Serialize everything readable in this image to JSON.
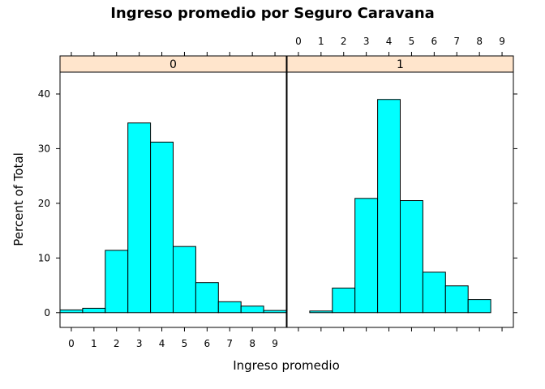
{
  "chart_data": {
    "type": "bar",
    "title": "Ingreso promedio por Seguro Caravana",
    "xlabel": "Ingreso promedio",
    "ylabel": "Percent of Total",
    "x_ticks": [
      "0",
      "1",
      "2",
      "3",
      "4",
      "5",
      "6",
      "7",
      "8",
      "9"
    ],
    "y_ticks": [
      "0",
      "10",
      "20",
      "30",
      "40"
    ],
    "xlim": [
      -0.5,
      9.5
    ],
    "ylim": [
      -2.7,
      44
    ],
    "colors": {
      "bar_fill": "#00ffff",
      "strip_fill": "#ffe5cc",
      "border": "#000000"
    },
    "panels": [
      {
        "strip_label": "0",
        "bins": [
          {
            "x0": -0.5,
            "x1": 0.5,
            "value": 0.5
          },
          {
            "x0": 0.5,
            "x1": 1.5,
            "value": 0.8
          },
          {
            "x0": 1.5,
            "x1": 2.5,
            "value": 11.4
          },
          {
            "x0": 2.5,
            "x1": 3.5,
            "value": 34.7
          },
          {
            "x0": 3.5,
            "x1": 4.5,
            "value": 31.2
          },
          {
            "x0": 4.5,
            "x1": 5.5,
            "value": 12.1
          },
          {
            "x0": 5.5,
            "x1": 6.5,
            "value": 5.5
          },
          {
            "x0": 6.5,
            "x1": 7.5,
            "value": 2.0
          },
          {
            "x0": 7.5,
            "x1": 8.5,
            "value": 1.2
          },
          {
            "x0": 8.5,
            "x1": 9.5,
            "value": 0.4
          }
        ]
      },
      {
        "strip_label": "1",
        "bins": [
          {
            "x0": -0.5,
            "x1": 0.5,
            "value": 0.0
          },
          {
            "x0": 0.5,
            "x1": 1.5,
            "value": 0.3
          },
          {
            "x0": 1.5,
            "x1": 2.5,
            "value": 4.5
          },
          {
            "x0": 2.5,
            "x1": 3.5,
            "value": 20.9
          },
          {
            "x0": 3.5,
            "x1": 4.5,
            "value": 39.0
          },
          {
            "x0": 4.5,
            "x1": 5.5,
            "value": 20.5
          },
          {
            "x0": 5.5,
            "x1": 6.5,
            "value": 7.4
          },
          {
            "x0": 6.5,
            "x1": 7.5,
            "value": 4.9
          },
          {
            "x0": 7.5,
            "x1": 8.5,
            "value": 2.4
          },
          {
            "x0": 8.5,
            "x1": 9.5,
            "value": 0.0
          }
        ]
      }
    ]
  }
}
